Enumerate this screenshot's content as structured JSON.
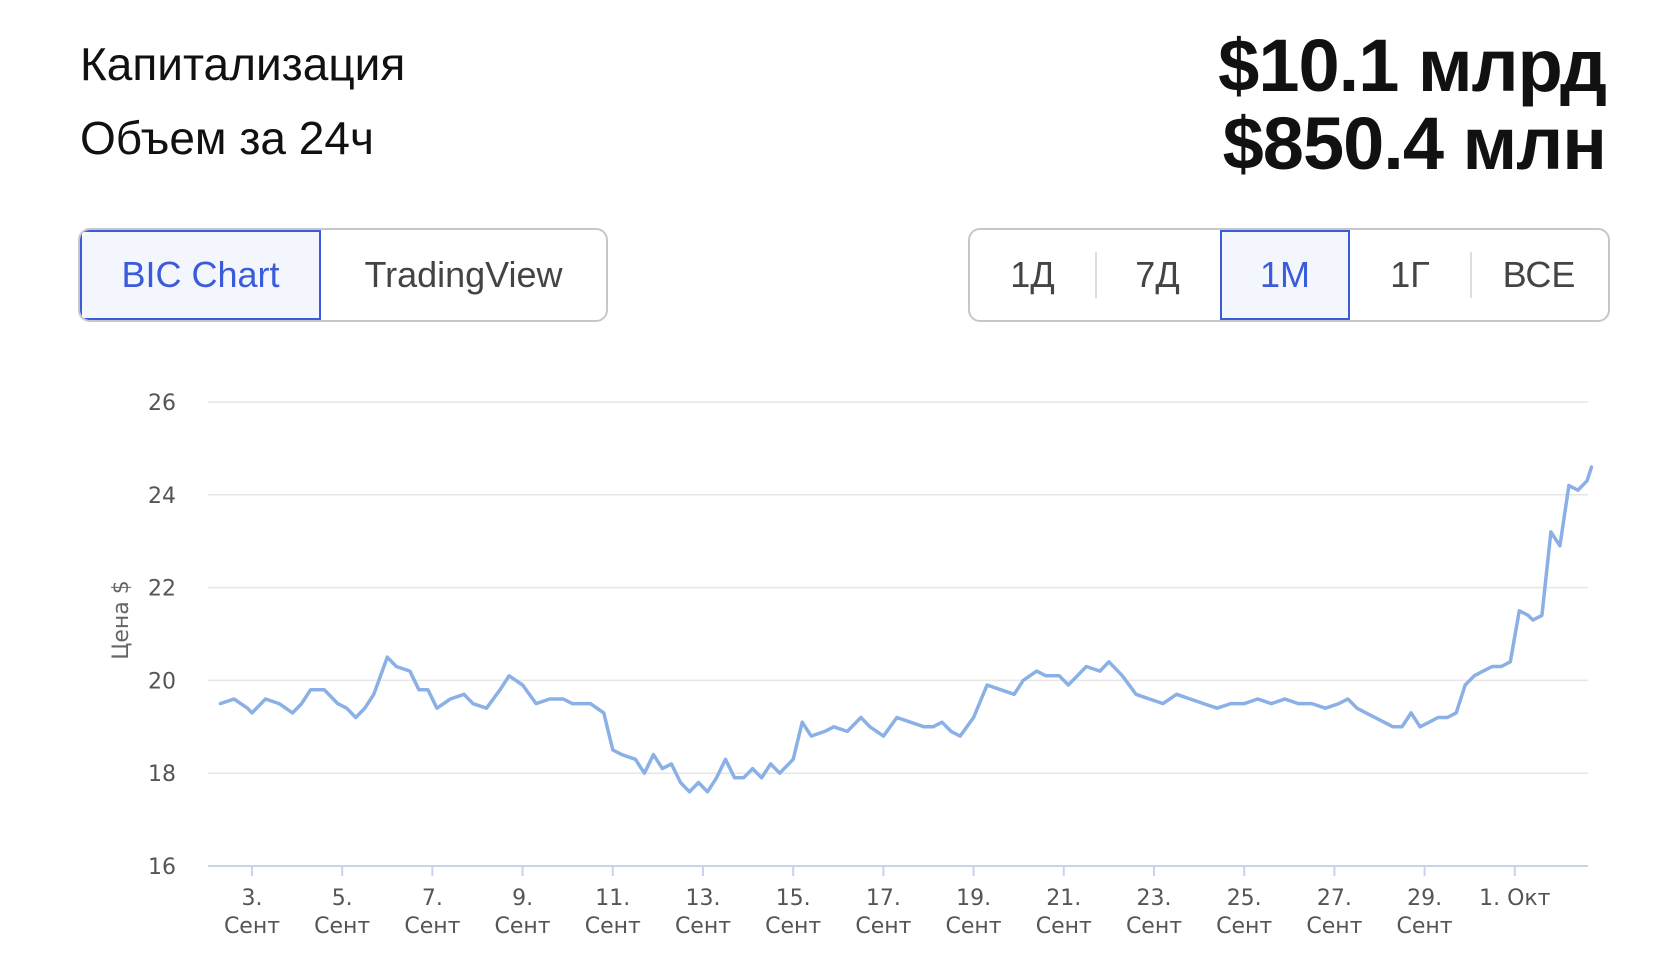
{
  "stats": {
    "cap_label": "Капитализация",
    "cap_value": "$10.1 млрд",
    "vol_label": "Объем за 24ч",
    "vol_value": "$850.4 млн"
  },
  "chart_tabs": {
    "items": [
      "BIC Chart",
      "TradingView"
    ],
    "active": "BIC Chart"
  },
  "period_tabs": {
    "items": [
      "1Д",
      "7Д",
      "1М",
      "1Г",
      "ВСЕ"
    ],
    "active": "1М"
  },
  "colors": {
    "accent": "#3b5bdb",
    "line": "#8ab0e6",
    "grid": "#e6e6e6"
  },
  "chart_data": {
    "type": "line",
    "title": "",
    "xlabel": "",
    "ylabel": "Цена $",
    "ylim": [
      16,
      26
    ],
    "yticks": [
      16,
      18,
      20,
      22,
      24,
      26
    ],
    "grid": true,
    "legend": "none",
    "x_ticks": [
      {
        "day": 3,
        "label": [
          "3.",
          "Сент"
        ]
      },
      {
        "day": 5,
        "label": [
          "5.",
          "Сент"
        ]
      },
      {
        "day": 7,
        "label": [
          "7.",
          "Сент"
        ]
      },
      {
        "day": 9,
        "label": [
          "9.",
          "Сент"
        ]
      },
      {
        "day": 11,
        "label": [
          "11.",
          "Сент"
        ]
      },
      {
        "day": 13,
        "label": [
          "13.",
          "Сент"
        ]
      },
      {
        "day": 15,
        "label": [
          "15.",
          "Сент"
        ]
      },
      {
        "day": 17,
        "label": [
          "17.",
          "Сент"
        ]
      },
      {
        "day": 19,
        "label": [
          "19.",
          "Сент"
        ]
      },
      {
        "day": 21,
        "label": [
          "21.",
          "Сент"
        ]
      },
      {
        "day": 23,
        "label": [
          "23.",
          "Сент"
        ]
      },
      {
        "day": 25,
        "label": [
          "25.",
          "Сент"
        ]
      },
      {
        "day": 27,
        "label": [
          "27.",
          "Сент"
        ]
      },
      {
        "day": 29,
        "label": [
          "29.",
          "Сент"
        ]
      },
      {
        "day": 31,
        "label": [
          "1. Окт"
        ]
      }
    ],
    "series": [
      {
        "x": [
          2.3,
          2.6,
          2.9,
          3.0,
          3.3,
          3.6,
          3.9,
          4.1,
          4.3,
          4.6,
          4.9,
          5.1,
          5.3,
          5.5,
          5.7,
          6.0,
          6.2,
          6.5,
          6.7,
          6.9,
          7.1,
          7.4,
          7.7,
          7.9,
          8.2,
          8.5,
          8.7,
          9.0,
          9.3,
          9.6,
          9.9,
          10.1,
          10.3,
          10.5,
          10.8,
          11.0,
          11.2,
          11.5,
          11.7,
          11.9,
          12.1,
          12.3,
          12.5,
          12.7,
          12.9,
          13.1,
          13.3,
          13.5,
          13.7,
          13.9,
          14.1,
          14.3,
          14.5,
          14.7,
          15.0,
          15.2,
          15.4,
          15.7,
          15.9,
          16.2,
          16.5,
          16.7,
          17.0,
          17.3,
          17.6,
          17.9,
          18.1,
          18.3,
          18.5,
          18.7,
          19.0,
          19.3,
          19.6,
          19.9,
          20.1,
          20.4,
          20.6,
          20.9,
          21.1,
          21.3,
          21.5,
          21.8,
          22.0,
          22.3,
          22.6,
          22.9,
          23.2,
          23.5,
          23.8,
          24.1,
          24.4,
          24.7,
          25.0,
          25.3,
          25.6,
          25.9,
          26.2,
          26.5,
          26.8,
          27.1,
          27.3,
          27.5,
          27.7,
          27.9,
          28.1,
          28.3,
          28.5,
          28.7,
          28.9,
          29.1,
          29.3,
          29.5,
          29.7,
          29.9,
          30.1,
          30.3,
          30.5,
          30.7,
          30.9,
          31.1,
          31.3,
          31.4,
          31.6,
          31.8,
          32.0,
          32.2,
          32.4,
          32.6,
          32.7
        ],
        "y": [
          19.5,
          19.6,
          19.4,
          19.3,
          19.6,
          19.5,
          19.3,
          19.5,
          19.8,
          19.8,
          19.5,
          19.4,
          19.2,
          19.4,
          19.7,
          20.5,
          20.3,
          20.2,
          19.8,
          19.8,
          19.4,
          19.6,
          19.7,
          19.5,
          19.4,
          19.8,
          20.1,
          19.9,
          19.5,
          19.6,
          19.6,
          19.5,
          19.5,
          19.5,
          19.3,
          18.5,
          18.4,
          18.3,
          18.0,
          18.4,
          18.1,
          18.2,
          17.8,
          17.6,
          17.8,
          17.6,
          17.9,
          18.3,
          17.9,
          17.9,
          18.1,
          17.9,
          18.2,
          18.0,
          18.3,
          19.1,
          18.8,
          18.9,
          19.0,
          18.9,
          19.2,
          19.0,
          18.8,
          19.2,
          19.1,
          19.0,
          19.0,
          19.1,
          18.9,
          18.8,
          19.2,
          19.9,
          19.8,
          19.7,
          20.0,
          20.2,
          20.1,
          20.1,
          19.9,
          20.1,
          20.3,
          20.2,
          20.4,
          20.1,
          19.7,
          19.6,
          19.5,
          19.7,
          19.6,
          19.5,
          19.4,
          19.5,
          19.5,
          19.6,
          19.5,
          19.6,
          19.5,
          19.5,
          19.4,
          19.5,
          19.6,
          19.4,
          19.3,
          19.2,
          19.1,
          19.0,
          19.0,
          19.3,
          19.0,
          19.1,
          19.2,
          19.2,
          19.3,
          19.9,
          20.1,
          20.2,
          20.3,
          20.3,
          20.4,
          21.5,
          21.4,
          21.3,
          21.4,
          23.2,
          22.9,
          24.2,
          24.1,
          24.3,
          24.6
        ]
      }
    ]
  }
}
